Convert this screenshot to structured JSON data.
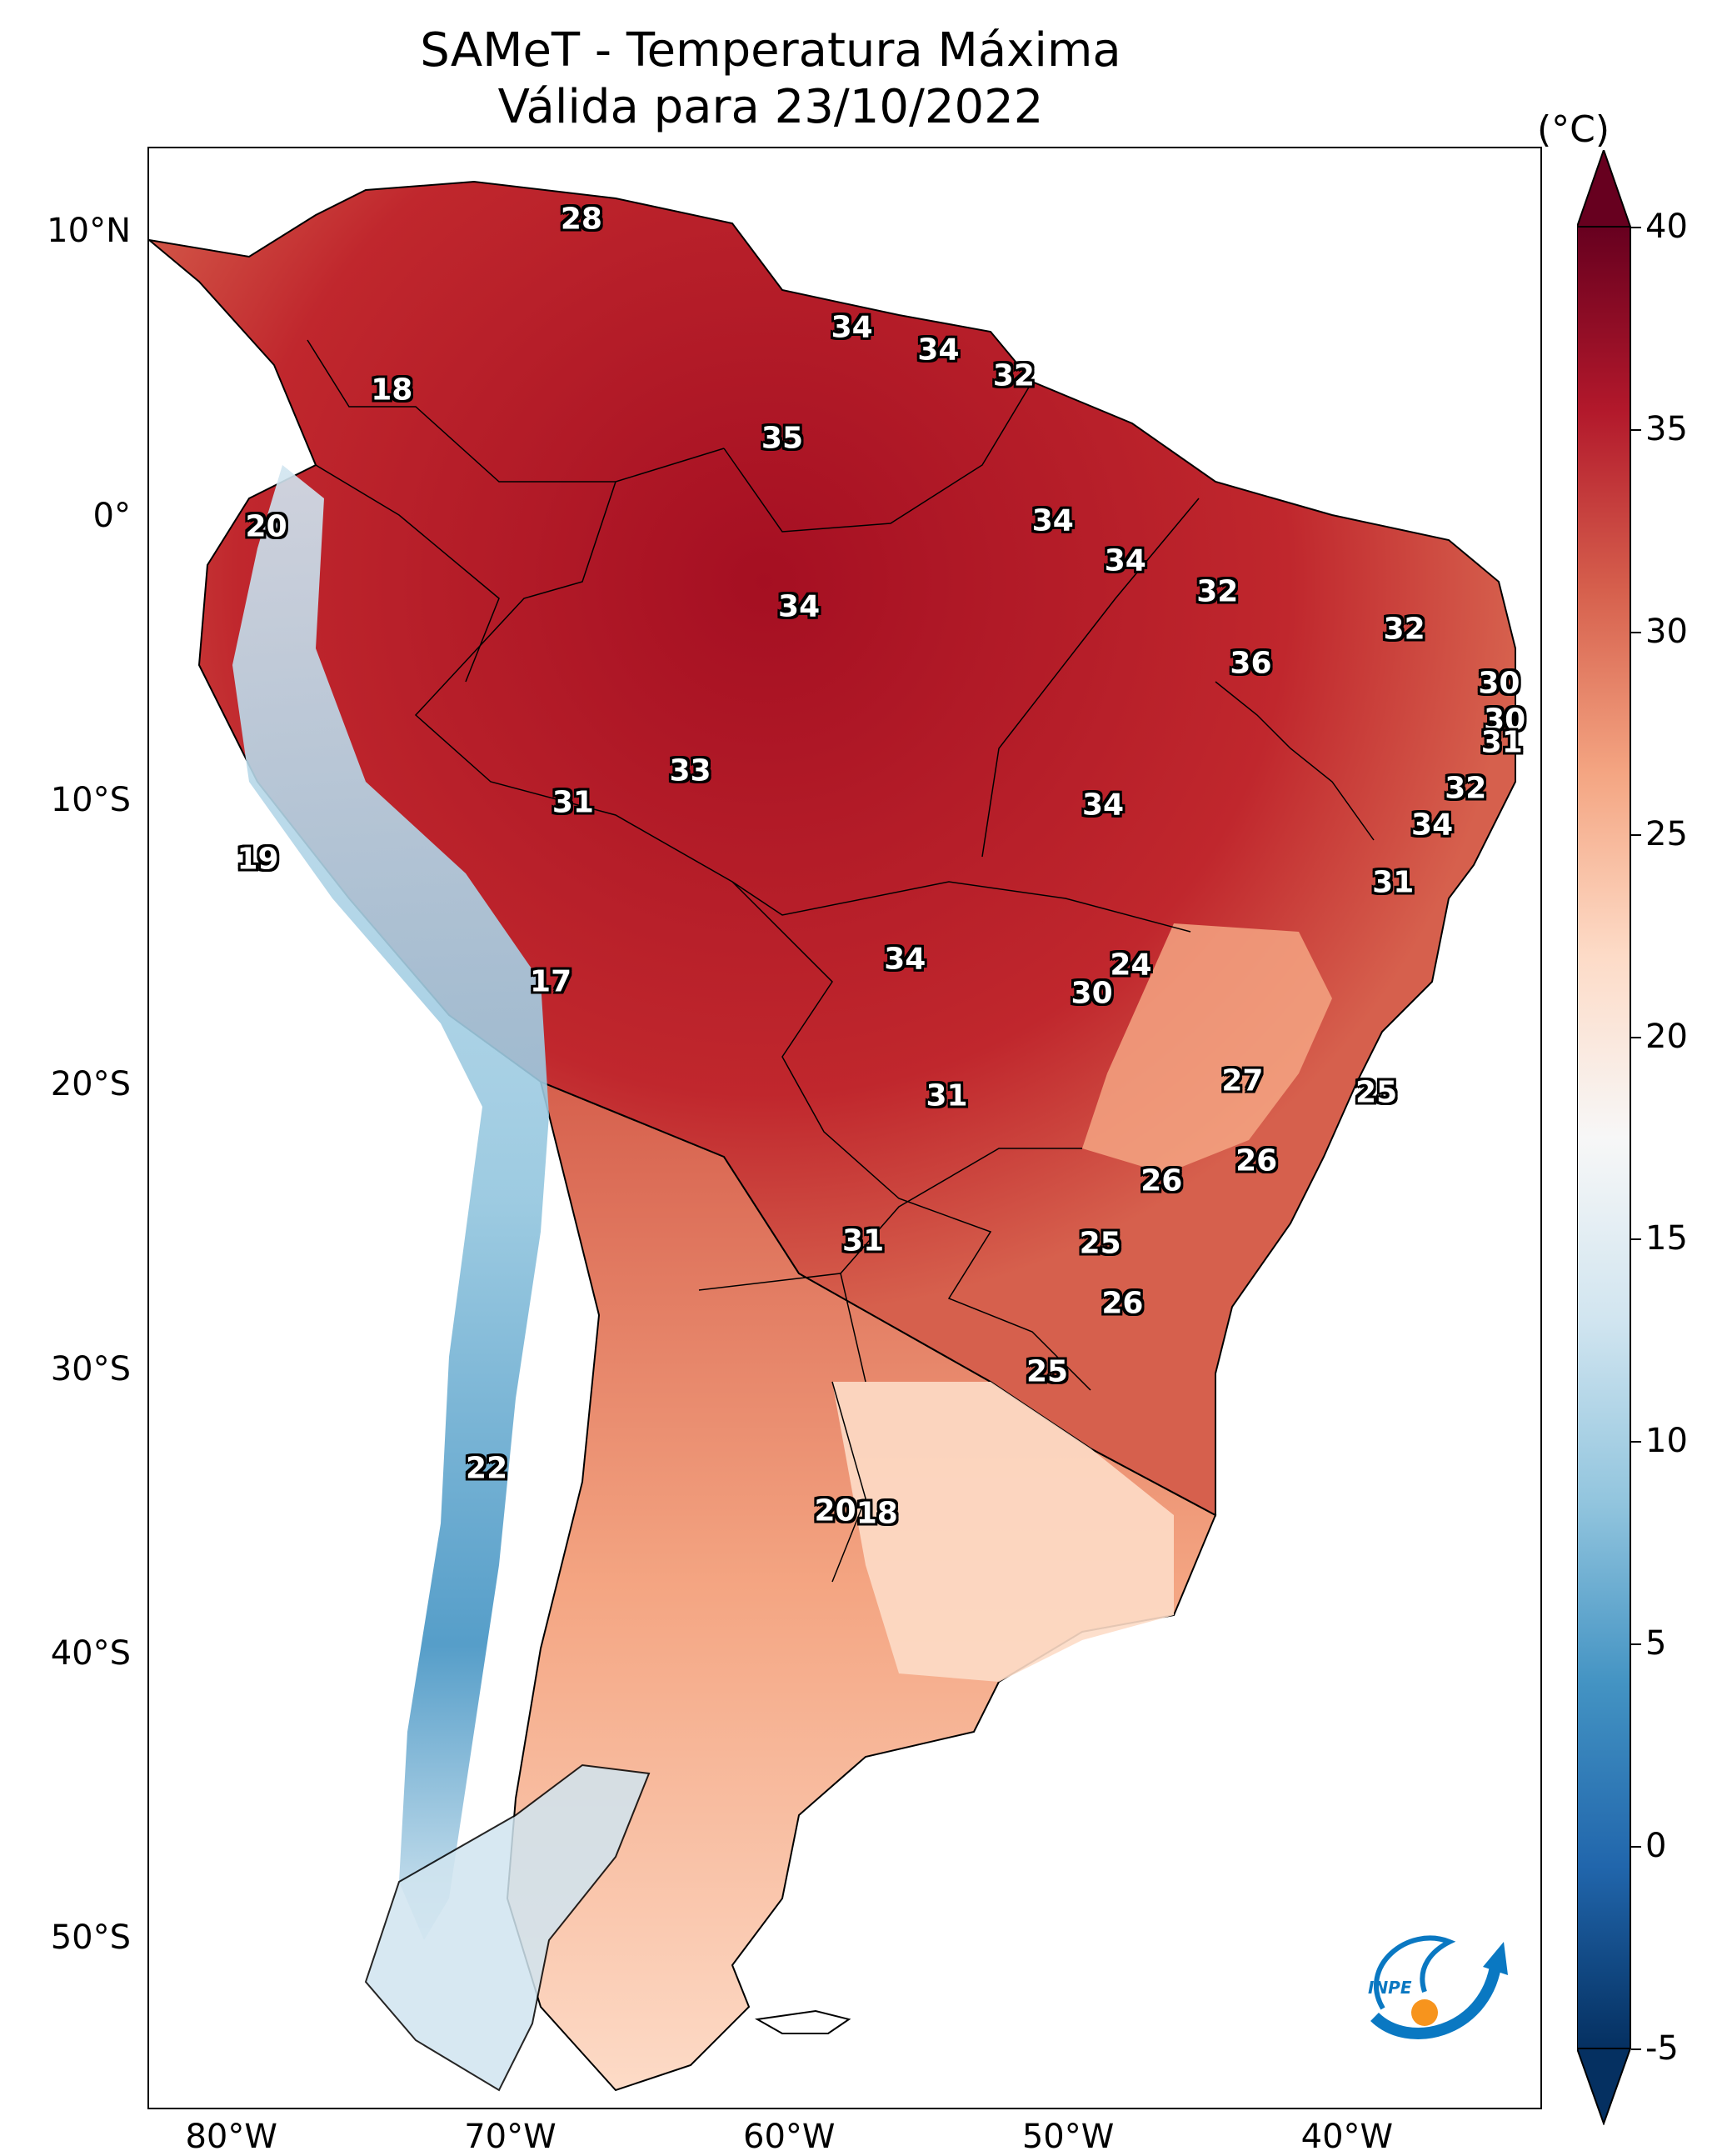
{
  "title": {
    "line1": "SAMeT - Temperatura Máxima",
    "line2": "Válida para 23/10/2022"
  },
  "map": {
    "lon_range": [
      -83,
      -33
    ],
    "lat_range": [
      -56,
      13
    ],
    "x_ticks": [
      {
        "lon": -80,
        "label": "80°W"
      },
      {
        "lon": -70,
        "label": "70°W"
      },
      {
        "lon": -60,
        "label": "60°W"
      },
      {
        "lon": -50,
        "label": "50°W"
      },
      {
        "lon": -40,
        "label": "40°W"
      }
    ],
    "y_ticks": [
      {
        "lat": 10,
        "label": "10°N"
      },
      {
        "lat": 0,
        "label": "0°"
      },
      {
        "lat": -10,
        "label": "10°S"
      },
      {
        "lat": -20,
        "label": "20°S"
      },
      {
        "lat": -30,
        "label": "30°S"
      },
      {
        "lat": -40,
        "label": "40°S"
      },
      {
        "lat": -50,
        "label": "50°S"
      }
    ],
    "contour_labels": [
      {
        "lon": -67.5,
        "lat": 10.5,
        "text": "28"
      },
      {
        "lon": -57.8,
        "lat": 6.7,
        "text": "34"
      },
      {
        "lon": -54.7,
        "lat": 5.9,
        "text": "34"
      },
      {
        "lon": -52.0,
        "lat": 5.0,
        "text": "32"
      },
      {
        "lon": -74.3,
        "lat": 4.5,
        "text": "18"
      },
      {
        "lon": -60.3,
        "lat": 2.8,
        "text": "35"
      },
      {
        "lon": -78.8,
        "lat": -0.3,
        "text": "20"
      },
      {
        "lon": -50.6,
        "lat": -0.1,
        "text": "34"
      },
      {
        "lon": -48.0,
        "lat": -1.5,
        "text": "34"
      },
      {
        "lon": -44.7,
        "lat": -2.6,
        "text": "32"
      },
      {
        "lon": -59.7,
        "lat": -3.1,
        "text": "34"
      },
      {
        "lon": -38.0,
        "lat": -3.9,
        "text": "32"
      },
      {
        "lon": -43.5,
        "lat": -5.1,
        "text": "36"
      },
      {
        "lon": -34.6,
        "lat": -5.8,
        "text": "30"
      },
      {
        "lon": -34.4,
        "lat": -7.1,
        "text": "30"
      },
      {
        "lon": -34.5,
        "lat": -7.9,
        "text": "31"
      },
      {
        "lon": -63.6,
        "lat": -8.9,
        "text": "33"
      },
      {
        "lon": -67.8,
        "lat": -10.0,
        "text": "31"
      },
      {
        "lon": -35.8,
        "lat": -9.5,
        "text": "32"
      },
      {
        "lon": -48.8,
        "lat": -10.1,
        "text": "34"
      },
      {
        "lon": -37.0,
        "lat": -10.8,
        "text": "34"
      },
      {
        "lon": -79.1,
        "lat": -12.0,
        "text": "19"
      },
      {
        "lon": -38.4,
        "lat": -12.8,
        "text": "31"
      },
      {
        "lon": -47.8,
        "lat": -15.7,
        "text": "24"
      },
      {
        "lon": -55.9,
        "lat": -15.5,
        "text": "34"
      },
      {
        "lon": -68.6,
        "lat": -16.3,
        "text": "17"
      },
      {
        "lon": -49.2,
        "lat": -16.7,
        "text": "30"
      },
      {
        "lon": -43.8,
        "lat": -19.8,
        "text": "27"
      },
      {
        "lon": -39.0,
        "lat": -20.2,
        "text": "25"
      },
      {
        "lon": -54.4,
        "lat": -20.3,
        "text": "31"
      },
      {
        "lon": -43.3,
        "lat": -22.6,
        "text": "26"
      },
      {
        "lon": -46.7,
        "lat": -23.3,
        "text": "26"
      },
      {
        "lon": -57.4,
        "lat": -25.4,
        "text": "31"
      },
      {
        "lon": -48.9,
        "lat": -25.5,
        "text": "25"
      },
      {
        "lon": -48.1,
        "lat": -27.6,
        "text": "26"
      },
      {
        "lon": -50.8,
        "lat": -30.0,
        "text": "25"
      },
      {
        "lon": -70.9,
        "lat": -33.4,
        "text": "22"
      },
      {
        "lon": -58.4,
        "lat": -34.9,
        "text": "20"
      },
      {
        "lon": -56.9,
        "lat": -35.0,
        "text": "18"
      }
    ]
  },
  "colorbar": {
    "unit": "(°C)",
    "min": -5,
    "max": 40,
    "ticks": [
      "40",
      "35",
      "30",
      "25",
      "20",
      "15",
      "10",
      "5",
      "0",
      "-5"
    ],
    "colors": [
      "#053061",
      "#2166ac",
      "#4393c3",
      "#92c5de",
      "#d1e5f0",
      "#f7f7f7",
      "#fddbc7",
      "#f4a582",
      "#d6604d",
      "#b2182b",
      "#67001f"
    ]
  },
  "logo": {
    "text": "INPE",
    "colors": [
      "#0a78c2",
      "#f7941d"
    ]
  }
}
